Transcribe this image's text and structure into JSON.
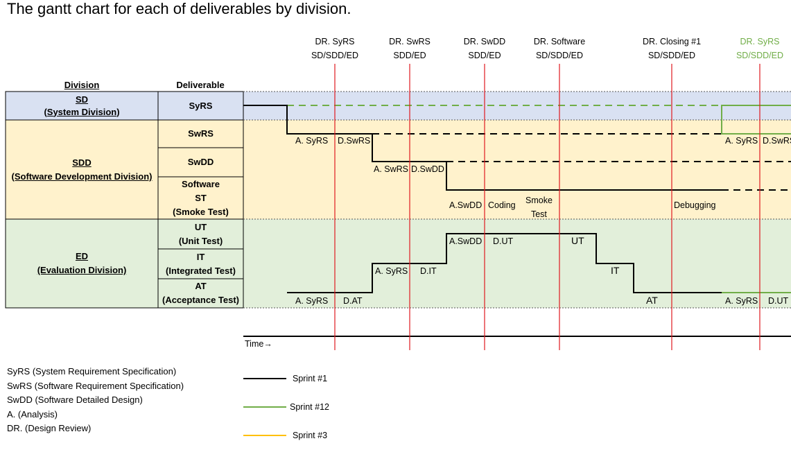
{
  "title": "The gantt chart for each of deliverables by division.",
  "headers": {
    "division": "Division",
    "deliverable": "Deliverable"
  },
  "divisions": [
    {
      "code": "SD",
      "name": "(System Division)",
      "color": "#d9e1f2"
    },
    {
      "code": "SDD",
      "name": "(Software Development Division)",
      "color": "#fff2cc"
    },
    {
      "code": "ED",
      "name": "(Evaluation Division)",
      "color": "#e2efda"
    }
  ],
  "deliverables": {
    "syrs": "SyRS",
    "swrs": "SwRS",
    "swdd": "SwDD",
    "st": [
      "Software",
      "ST",
      "(Smoke Test)"
    ],
    "ut": [
      "UT",
      "(Unit Test)"
    ],
    "it": [
      "IT",
      "(Integrated Test)"
    ],
    "at": [
      "AT",
      "(Acceptance Test)"
    ]
  },
  "design_reviews": [
    {
      "line1": "DR. SyRS",
      "line2": "SD/SDD/ED",
      "color": "#000000"
    },
    {
      "line1": "DR. SwRS",
      "line2": "SDD/ED",
      "color": "#000000"
    },
    {
      "line1": "DR. SwDD",
      "line2": "SDD/ED",
      "color": "#000000"
    },
    {
      "line1": "DR. Software",
      "line2": "SD/SDD/ED",
      "color": "#000000"
    },
    {
      "line1": "DR. Closing #1",
      "line2": "SD/SDD/ED",
      "color": "#000000"
    },
    {
      "line1": "DR. SyRS",
      "line2": "SD/SDD/ED",
      "color": "#70ad47"
    }
  ],
  "activity_labels": {
    "swrs_a": "A. SyRS",
    "swrs_d": "D.SwRS",
    "swdd_a": "A. SwRS",
    "swdd_d": "D.SwDD",
    "st_a": "A.SwDD",
    "st_coding": "Coding",
    "st_smoke": [
      "Smoke",
      "Test"
    ],
    "st_debug": "Debugging",
    "ut_a": "A.SwDD",
    "ut_d": "D.UT",
    "ut_exec": "UT",
    "it_a": "A. SyRS",
    "it_d": "D.IT",
    "it_exec": "IT",
    "at_a": "A. SyRS",
    "at_d": "D.AT",
    "at_exec": "AT",
    "swrs_next_a": "A. SyRS",
    "swrs_next_d": "D.SwRS",
    "at_next_a": "A. SyRS",
    "at_next_d": "D.UT"
  },
  "time_label": "Time→",
  "glossary": [
    "SyRS (System Requirement Specification)",
    "SwRS (Software Requirement Specification)",
    "SwDD (Software Detailed Design)",
    "A. (Analysis)",
    "DR. (Design Review)"
  ],
  "legend": [
    {
      "label": "Sprint #1",
      "color": "#000000"
    },
    {
      "label": "Sprint #12",
      "color": "#70ad47"
    },
    {
      "label": "Sprint #3",
      "color": "#ffc000"
    }
  ],
  "colors": {
    "review_line": "#e0191f",
    "sprint1": "#000000",
    "sprint12": "#70ad47",
    "sprint3": "#ffc000"
  }
}
